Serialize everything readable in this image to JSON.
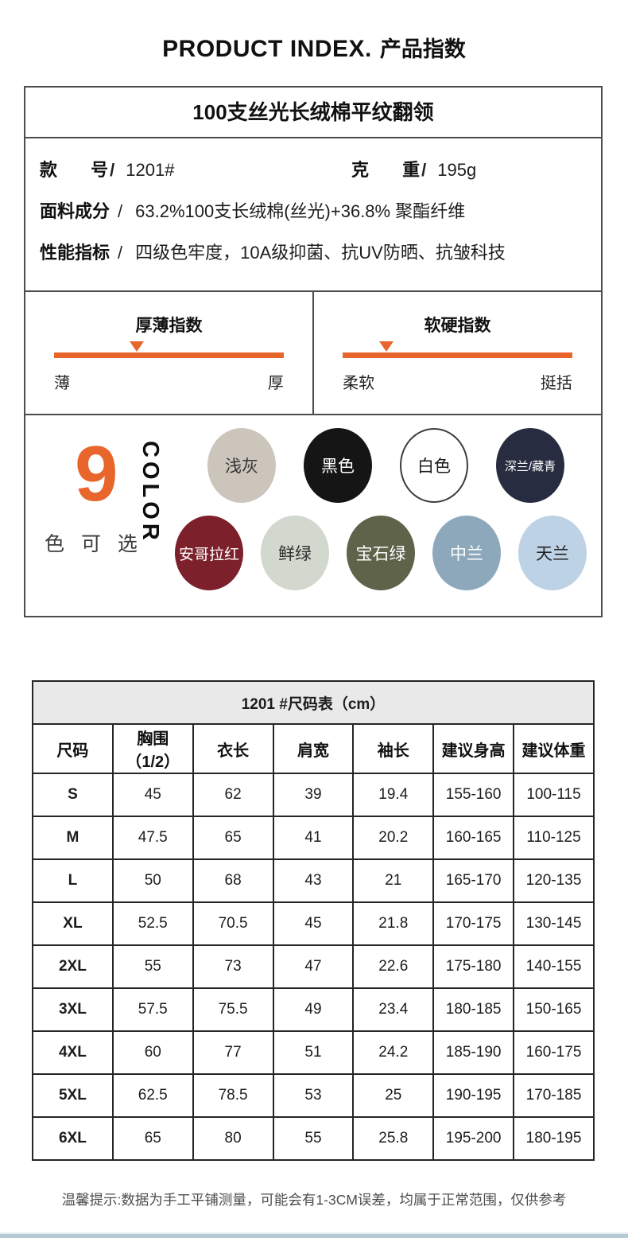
{
  "header": {
    "title_en": "PRODUCT INDEX.",
    "title_zh": "产品指数"
  },
  "product": {
    "title": "100支丝光长绒棉平纹翻领",
    "sep": "/",
    "model_label": "款 号",
    "model_value": "1201#",
    "weight_label": "克 重",
    "weight_value": "195g",
    "fabric_label": "面料成分",
    "fabric_value": "63.2%100支长绒棉(丝光)+36.8% 聚酯纤维",
    "performance_label": "性能指标",
    "performance_value": "四级色牢度，10A级抑菌、抗UV防晒、抗皱科技"
  },
  "indexes": [
    {
      "title": "厚薄指数",
      "left_label": "薄",
      "right_label": "厚",
      "marker_pct": 36
    },
    {
      "title": "软硬指数",
      "left_label": "柔软",
      "right_label": "挺括",
      "marker_pct": 19
    }
  ],
  "accent_orange": "#e8652c",
  "colors": {
    "count": "9",
    "count_suffix": "色 可 选",
    "color_word": "COLOR",
    "row1": [
      {
        "name": "浅灰",
        "hex": "#cbc5bc",
        "text": "#333333"
      },
      {
        "name": "黑色",
        "hex": "#151515",
        "text": "#ffffff"
      },
      {
        "name": "白色",
        "hex": "#ffffff",
        "text": "#1a1a1a",
        "outlined": true
      },
      {
        "name": "深兰/藏青",
        "hex": "#272c40",
        "text": "#ffffff",
        "small_text": true
      }
    ],
    "row2": [
      {
        "name": "安哥拉红",
        "hex": "#7c212b",
        "text": "#ffffff",
        "mid_text": true
      },
      {
        "name": "鲜绿",
        "hex": "#d2d8cd",
        "text": "#2f2f2f"
      },
      {
        "name": "宝石绿",
        "hex": "#5e634a",
        "text": "#ffffff"
      },
      {
        "name": "中兰",
        "hex": "#8ea8bb",
        "text": "#ffffff"
      },
      {
        "name": "天兰",
        "hex": "#bed2e6",
        "text": "#222222"
      }
    ]
  },
  "size_table": {
    "title": "1201 #尺码表（cm）",
    "headers": [
      "尺码",
      "胸围（1/2）",
      "衣长",
      "肩宽",
      "袖长",
      "建议身高",
      "建议体重"
    ],
    "rows": [
      [
        "S",
        "45",
        "62",
        "39",
        "19.4",
        "155-160",
        "100-115"
      ],
      [
        "M",
        "47.5",
        "65",
        "41",
        "20.2",
        "160-165",
        "110-125"
      ],
      [
        "L",
        "50",
        "68",
        "43",
        "21",
        "165-170",
        "120-135"
      ],
      [
        "XL",
        "52.5",
        "70.5",
        "45",
        "21.8",
        "170-175",
        "130-145"
      ],
      [
        "2XL",
        "55",
        "73",
        "47",
        "22.6",
        "175-180",
        "140-155"
      ],
      [
        "3XL",
        "57.5",
        "75.5",
        "49",
        "23.4",
        "180-185",
        "150-165"
      ],
      [
        "4XL",
        "60",
        "77",
        "51",
        "24.2",
        "185-190",
        "160-175"
      ],
      [
        "5XL",
        "62.5",
        "78.5",
        "53",
        "25",
        "190-195",
        "170-185"
      ],
      [
        "6XL",
        "65",
        "80",
        "55",
        "25.8",
        "195-200",
        "180-195"
      ]
    ]
  },
  "footer_note": "温馨提示:数据为手工平铺测量，可能会有1-3CM误差，均属于正常范围，仅供参考"
}
